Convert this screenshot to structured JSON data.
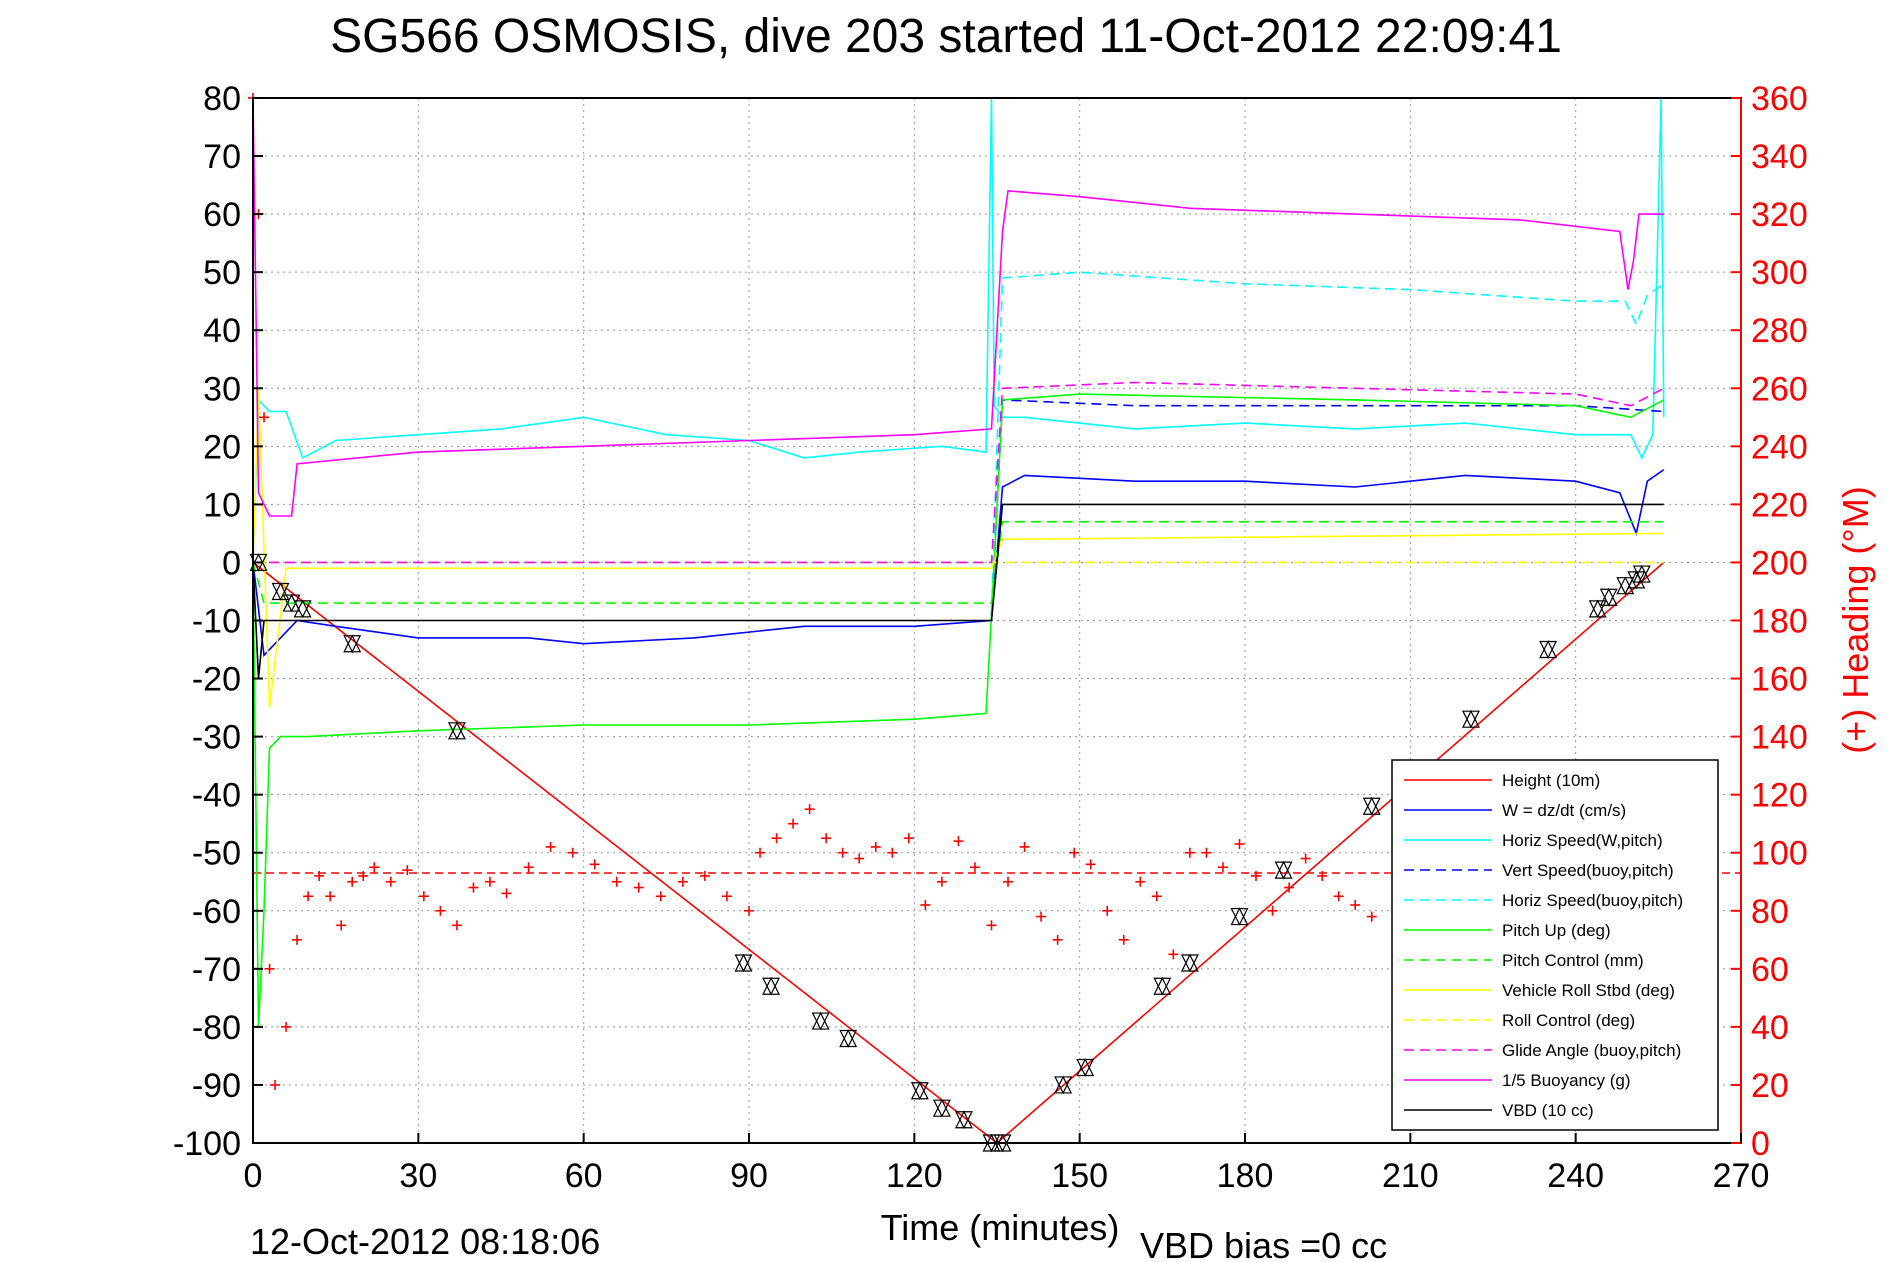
{
  "chart_data": {
    "type": "line",
    "title": "SG566 OSMOSIS, dive 203 started 11-Oct-2012 22:09:41",
    "xlabel": "Time (minutes)",
    "ylabel_right": "(+) Heading (°M)",
    "footer_left": "12-Oct-2012 08:18:06",
    "footer_right": "VBD bias =0 cc",
    "xlim": [
      0,
      270
    ],
    "ylim": [
      -100,
      80
    ],
    "ylim_right": [
      0,
      360
    ],
    "x_ticks": [
      "0",
      "30",
      "60",
      "90",
      "120",
      "150",
      "180",
      "210",
      "240",
      "270"
    ],
    "y_ticks": [
      "80",
      "70",
      "60",
      "50",
      "40",
      "30",
      "20",
      "10",
      "0",
      "-10",
      "-20",
      "-30",
      "-40",
      "-50",
      "-60",
      "-70",
      "-80",
      "-90",
      "-100"
    ],
    "y2_ticks": [
      "360",
      "340",
      "320",
      "300",
      "280",
      "260",
      "240",
      "220",
      "200",
      "180",
      "160",
      "140",
      "120",
      "100",
      "80",
      "60",
      "40",
      "20",
      "0"
    ],
    "grid": true,
    "legend_position": "bottom-right",
    "colors": {
      "red": "#ff0000",
      "blue": "#0000ff",
      "cyan": "#00ffff",
      "green": "#00ff00",
      "yellow": "#ffff00",
      "magenta": "#ff00ff",
      "black": "#000000",
      "axis_right": "#ff0000"
    },
    "series": [
      {
        "name": "Height (10m)",
        "color": "#ff0000",
        "style": "solid",
        "x": [
          0,
          135,
          256
        ],
        "y": [
          0,
          -100,
          0
        ]
      },
      {
        "name": "W = dz/dt (cm/s)",
        "color": "#0000ff",
        "style": "solid",
        "x": [
          0,
          2,
          4,
          8,
          15,
          30,
          50,
          60,
          80,
          100,
          120,
          134,
          136,
          140,
          160,
          180,
          200,
          220,
          240,
          248,
          251,
          253,
          256
        ],
        "y": [
          0,
          -16,
          -14,
          -10,
          -11,
          -13,
          -13,
          -14,
          -13,
          -11,
          -11,
          -10,
          13,
          15,
          14,
          14,
          13,
          15,
          14,
          12,
          5,
          14,
          16
        ]
      },
      {
        "name": "Horiz Speed(W,pitch)",
        "color": "#00ffff",
        "style": "solid",
        "x": [
          0,
          1,
          3,
          6,
          9,
          15,
          30,
          45,
          60,
          75,
          90,
          100,
          110,
          125,
          133,
          134,
          134.5,
          136,
          140,
          160,
          180,
          200,
          220,
          240,
          250,
          252,
          254,
          255.5,
          256
        ],
        "y": [
          0,
          28,
          26,
          26,
          18,
          21,
          22,
          23,
          25,
          22,
          21,
          18,
          19,
          20,
          19,
          80,
          27,
          25,
          25,
          23,
          24,
          23,
          24,
          22,
          22,
          18,
          22,
          80,
          25
        ]
      },
      {
        "name": "Vert Speed(buoy,pitch)",
        "color": "#0000ff",
        "style": "dashed",
        "x": [
          134,
          136,
          160,
          200,
          240,
          256
        ],
        "y": [
          -9,
          28,
          27,
          27,
          27,
          26
        ]
      },
      {
        "name": "Horiz Speed(buoy,pitch)",
        "color": "#00ffff",
        "style": "dashed",
        "x": [
          134,
          136,
          150,
          180,
          210,
          240,
          249,
          251,
          253,
          256
        ],
        "y": [
          -9,
          49,
          50,
          48,
          47,
          45,
          45,
          41,
          46,
          48
        ]
      },
      {
        "name": "Pitch Up (deg)",
        "color": "#00ff00",
        "style": "solid",
        "x": [
          0,
          1,
          2,
          3,
          5,
          10,
          30,
          60,
          90,
          120,
          133,
          134,
          136,
          150,
          200,
          240,
          250,
          256
        ],
        "y": [
          0,
          -80,
          -60,
          -32,
          -30,
          -30,
          -29,
          -28,
          -28,
          -27,
          -26,
          -9,
          28,
          29,
          28,
          27,
          25,
          28
        ]
      },
      {
        "name": "Pitch Control (mm)",
        "color": "#00ff00",
        "style": "dashed",
        "x": [
          0,
          2,
          134,
          136,
          256
        ],
        "y": [
          0,
          -7,
          -7,
          7,
          7
        ]
      },
      {
        "name": "Vehicle Roll Stbd (deg)",
        "color": "#ffff00",
        "style": "solid",
        "x": [
          0,
          1,
          3,
          6,
          134,
          136,
          140,
          256
        ],
        "y": [
          0,
          30,
          -25,
          -1,
          -1,
          4,
          4,
          5
        ]
      },
      {
        "name": "Roll Control (deg)",
        "color": "#ffff00",
        "style": "dashed",
        "x": [
          0,
          256
        ],
        "y": [
          0,
          0
        ]
      },
      {
        "name": "Glide Angle (buoy,pitch)",
        "color": "#ff00ff",
        "style": "dashed",
        "x": [
          0,
          134,
          136,
          160,
          200,
          240,
          250,
          256
        ],
        "y": [
          0,
          0,
          30,
          31,
          30,
          29,
          27,
          30
        ]
      },
      {
        "name": "1/5 Buoyancy (g)",
        "color": "#ff00ff",
        "style": "solid",
        "x": [
          0,
          1,
          3,
          7,
          8,
          30,
          60,
          90,
          120,
          134,
          136,
          137,
          150,
          170,
          200,
          230,
          248,
          249.5,
          250.5,
          251.5,
          256
        ],
        "y": [
          80,
          12,
          8,
          8,
          17,
          19,
          20,
          21,
          22,
          23,
          57,
          64,
          63,
          61,
          60,
          59,
          57,
          47,
          52,
          60,
          60
        ]
      },
      {
        "name": "VBD (10 cc)",
        "color": "#000000",
        "style": "solid",
        "x": [
          0,
          1,
          2,
          134,
          136,
          256
        ],
        "y": [
          0,
          -20,
          -10,
          -10,
          10,
          10
        ]
      }
    ],
    "heading": {
      "axis": "right",
      "color": "#ff0000",
      "marker": "+",
      "mean": 93,
      "x": [
        0,
        1,
        2,
        3,
        4,
        6,
        8,
        10,
        12,
        14,
        16,
        18,
        20,
        22,
        25,
        28,
        31,
        34,
        37,
        40,
        43,
        46,
        50,
        54,
        58,
        62,
        66,
        70,
        74,
        78,
        82,
        86,
        90,
        92,
        95,
        98,
        101,
        104,
        107,
        110,
        113,
        116,
        119,
        122,
        125,
        128,
        131,
        134,
        137,
        140,
        143,
        146,
        149,
        152,
        155,
        158,
        161,
        164,
        167,
        170,
        173,
        176,
        179,
        182,
        185,
        188,
        191,
        194,
        197,
        200,
        203
      ],
      "y": [
        360,
        320,
        250,
        60,
        20,
        40,
        70,
        85,
        92,
        85,
        75,
        90,
        92,
        95,
        90,
        94,
        85,
        80,
        75,
        88,
        90,
        86,
        95,
        102,
        100,
        96,
        90,
        88,
        85,
        90,
        92,
        85,
        80,
        100,
        105,
        110,
        115,
        105,
        100,
        98,
        102,
        100,
        105,
        82,
        90,
        104,
        95,
        75,
        90,
        102,
        78,
        70,
        100,
        96,
        80,
        70,
        90,
        85,
        65,
        100,
        100,
        95,
        103,
        92,
        80,
        88,
        98,
        92,
        85,
        82,
        78
      ]
    },
    "dive_markers": {
      "marker": "triangle",
      "x": [
        1,
        5,
        7,
        9,
        18,
        37,
        89,
        94,
        103,
        108,
        121,
        125,
        129,
        134,
        136,
        147,
        151,
        165,
        170,
        179,
        187,
        203,
        221,
        235,
        244,
        246,
        249,
        251,
        252
      ],
      "y": [
        0,
        -5,
        -7,
        -8,
        -14,
        -29,
        -69,
        -73,
        -79,
        -82,
        -91,
        -94,
        -96,
        -100,
        -100,
        -90,
        -87,
        -73,
        -69,
        -61,
        -53,
        -42,
        -27,
        -15,
        -8,
        -6,
        -4,
        -3,
        -2
      ]
    }
  }
}
